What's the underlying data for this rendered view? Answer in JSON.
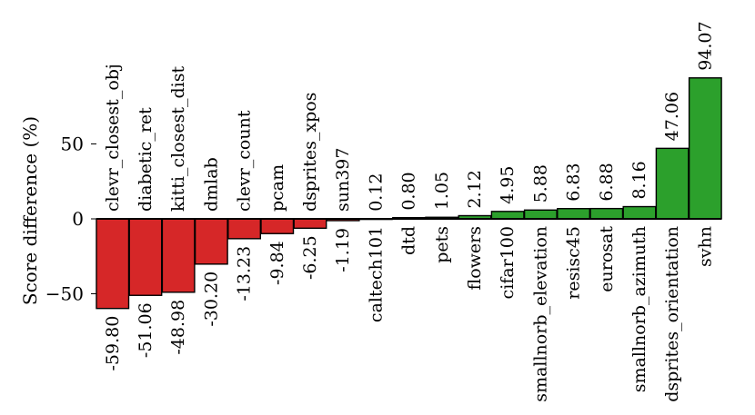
{
  "chart_data": {
    "type": "bar",
    "ylabel": "Score difference (%)",
    "yticks": [
      {
        "value": -50,
        "label": "−50"
      },
      {
        "value": 0,
        "label": "0"
      },
      {
        "value": 50,
        "label": "50"
      }
    ],
    "ylim": [
      -62,
      98
    ],
    "grid": false,
    "colors": {
      "negative": "#d62728",
      "positive": "#2ca02c"
    },
    "bars": [
      {
        "category": "clevr_closest_obj",
        "value": -59.8,
        "label": "-59.80"
      },
      {
        "category": "diabetic_ret",
        "value": -51.06,
        "label": "-51.06"
      },
      {
        "category": "kitti_closest_dist",
        "value": -48.98,
        "label": "-48.98"
      },
      {
        "category": "dmlab",
        "value": -30.2,
        "label": "-30.20"
      },
      {
        "category": "clevr_count",
        "value": -13.23,
        "label": "-13.23"
      },
      {
        "category": "pcam",
        "value": -9.84,
        "label": "-9.84"
      },
      {
        "category": "dsprites_xpos",
        "value": -6.25,
        "label": "-6.25"
      },
      {
        "category": "sun397",
        "value": -1.19,
        "label": "-1.19"
      },
      {
        "category": "caltech101",
        "value": 0.12,
        "label": "0.12"
      },
      {
        "category": "dtd",
        "value": 0.8,
        "label": "0.80"
      },
      {
        "category": "pets",
        "value": 1.05,
        "label": "1.05"
      },
      {
        "category": "flowers",
        "value": 2.12,
        "label": "2.12"
      },
      {
        "category": "cifar100",
        "value": 4.95,
        "label": "4.95"
      },
      {
        "category": "smallnorb_elevation",
        "value": 5.88,
        "label": "5.88"
      },
      {
        "category": "resisc45",
        "value": 6.83,
        "label": "6.83"
      },
      {
        "category": "eurosat",
        "value": 6.88,
        "label": "6.88"
      },
      {
        "category": "smallnorb_azimuth",
        "value": 8.16,
        "label": "8.16"
      },
      {
        "category": "dsprites_orientation",
        "value": 47.06,
        "label": "47.06"
      },
      {
        "category": "svhn",
        "value": 94.07,
        "label": "94.07"
      }
    ]
  }
}
